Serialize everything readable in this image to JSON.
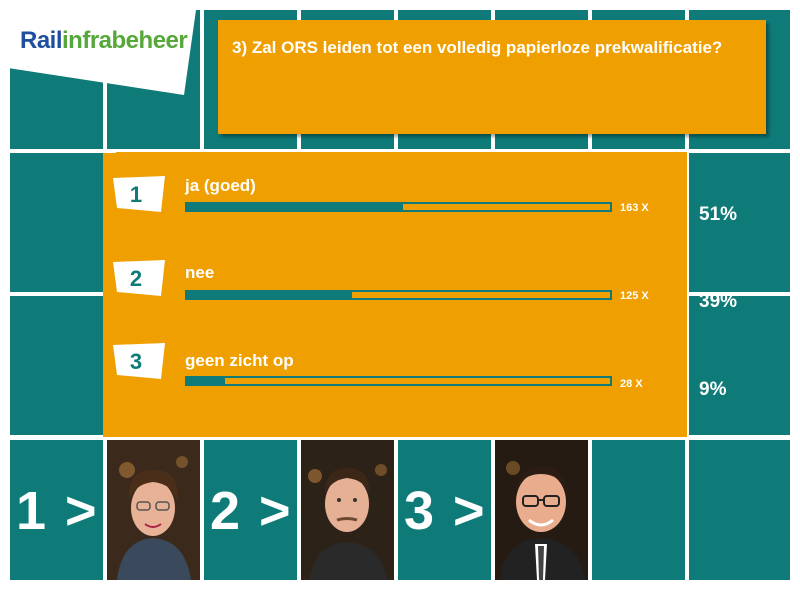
{
  "brand": {
    "logo_part1": "Rail",
    "logo_part2": "infrabeheer"
  },
  "question": {
    "text": "3) Zal ORS leiden tot een volledig papierloze prekwalificatie?"
  },
  "answers": [
    {
      "number": "1",
      "label": "ja (goed)",
      "count": "163 X",
      "percent": "51%",
      "fraction": 0.51
    },
    {
      "number": "2",
      "label": "nee",
      "count": "125 X",
      "percent": "39%",
      "fraction": 0.39
    },
    {
      "number": "3",
      "label": "geen zicht op",
      "count": "28 X",
      "percent": "9%",
      "fraction": 0.09
    }
  ],
  "panelists": [
    {
      "label": "1 >",
      "photo": "woman-with-glasses"
    },
    {
      "label": "2 >",
      "photo": "man-with-mustache"
    },
    {
      "label": "3 >",
      "photo": "man-with-glasses-and-tie"
    }
  ],
  "colors": {
    "teal": "#0e7b78",
    "orange": "#ef9f00",
    "logo_blue": "#1f4ea1",
    "logo_green": "#56a83a"
  }
}
